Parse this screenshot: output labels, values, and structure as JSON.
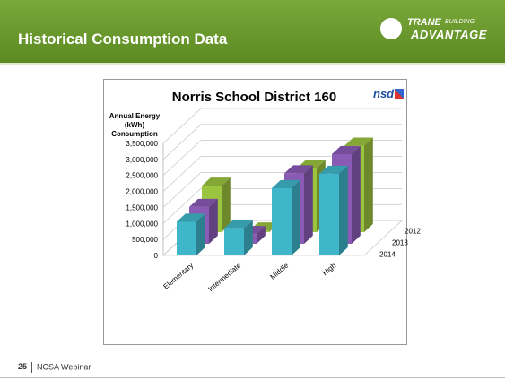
{
  "slide": {
    "title": "Historical Consumption Data",
    "logo": {
      "brand": "TRANE",
      "line1": "BUILDING",
      "line2": "ADVANTAGE"
    },
    "chart_logo": "nsd",
    "page_number": "25",
    "footer": "NCSA Webinar"
  },
  "chart_data": {
    "type": "bar3d",
    "title": "Norris School District 160",
    "y_label": "Annual Energy (kWh) Consumption",
    "categories": [
      "Elementary",
      "Intermediate",
      "Middle",
      "High"
    ],
    "series": [
      {
        "name": "2012",
        "color": "#9bc43f",
        "values": [
          1450000,
          50000,
          2000000,
          2700000
        ]
      },
      {
        "name": "2013",
        "color": "#8a5bb5",
        "values": [
          1150000,
          300000,
          2200000,
          2800000
        ]
      },
      {
        "name": "2014",
        "color": "#3fb6c9",
        "values": [
          1050000,
          850000,
          2100000,
          2550000
        ]
      }
    ],
    "ylim": [
      0,
      3500000
    ],
    "yticks": [
      {
        "value": 0,
        "label": "0"
      },
      {
        "value": 500000,
        "label": "500,000"
      },
      {
        "value": 1000000,
        "label": "1,000,000"
      },
      {
        "value": 1500000,
        "label": "1,500,000"
      },
      {
        "value": 2000000,
        "label": "2,000,000"
      },
      {
        "value": 2500000,
        "label": "2,500,000"
      },
      {
        "value": 3000000,
        "label": "3,000,000"
      },
      {
        "value": 3500000,
        "label": "3,500,000"
      }
    ],
    "grid": true
  }
}
